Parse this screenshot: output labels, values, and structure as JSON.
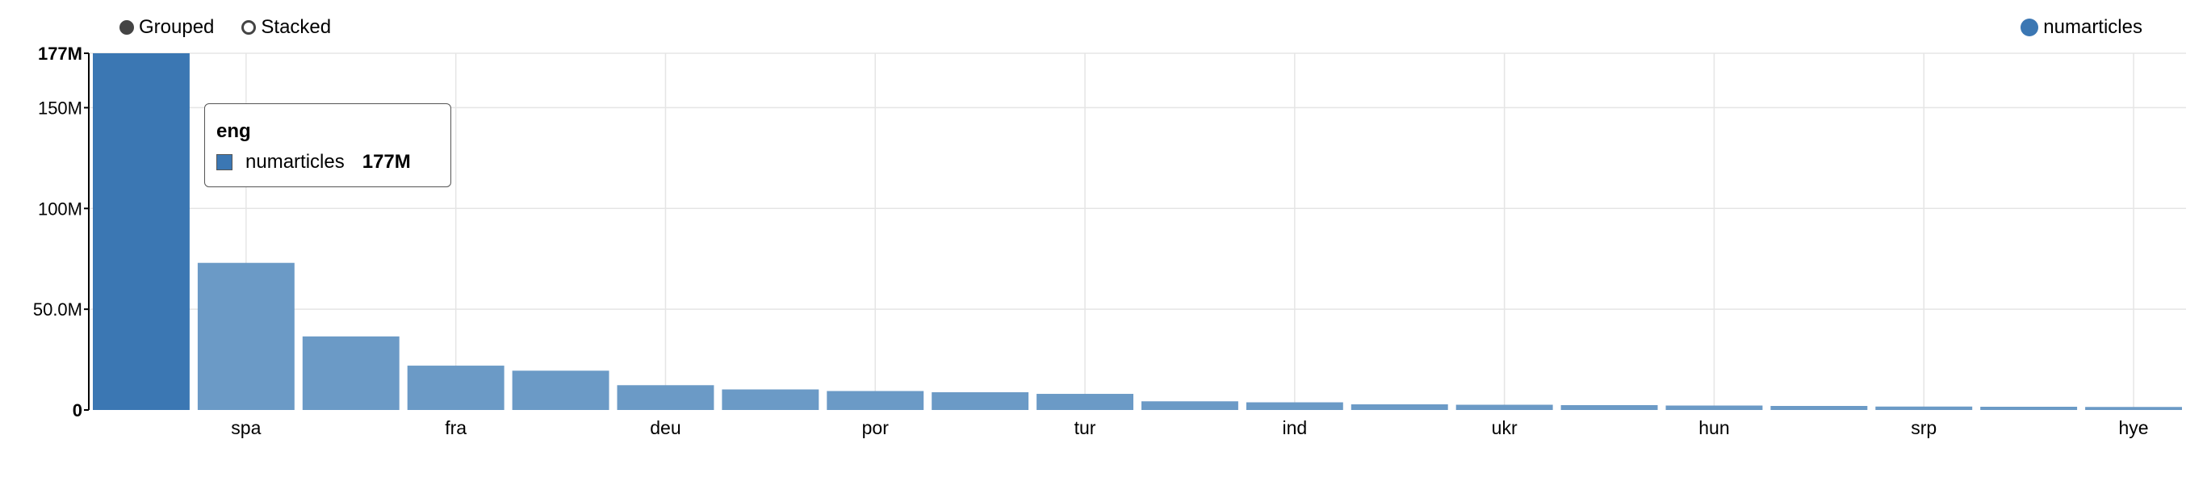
{
  "controls": {
    "grouped_label": "Grouped",
    "stacked_label": "Stacked"
  },
  "legend": {
    "label": "numarticles",
    "color": "#3b77b3"
  },
  "tooltip": {
    "title": "eng",
    "series": "numarticles",
    "value": "177M"
  },
  "chart_data": {
    "type": "bar",
    "categories": [
      "eng",
      "spa",
      "",
      "fra",
      "",
      "deu",
      "",
      "por",
      "",
      "tur",
      "",
      "ind",
      "",
      "ukr",
      "",
      "hun",
      "",
      "srp",
      "",
      "hye"
    ],
    "x_tick_labels": [
      "spa",
      "fra",
      "deu",
      "por",
      "tur",
      "ind",
      "ukr",
      "hun",
      "srp",
      "hye"
    ],
    "series": [
      {
        "name": "numarticles",
        "values": [
          177,
          73,
          36.5,
          22,
          19.5,
          12.3,
          10.2,
          9.4,
          8.8,
          8.0,
          4.3,
          3.8,
          2.8,
          2.6,
          2.4,
          2.2,
          2.0,
          1.7,
          1.6,
          1.5
        ]
      }
    ],
    "highlighted_category": "eng",
    "y_ticks": [
      {
        "value": 0,
        "label": "0",
        "bold": true
      },
      {
        "value": 50,
        "label": "50.0M",
        "bold": false
      },
      {
        "value": 100,
        "label": "100M",
        "bold": false
      },
      {
        "value": 150,
        "label": "150M",
        "bold": false
      },
      {
        "value": 177,
        "label": "177M",
        "bold": true
      }
    ],
    "ylim": [
      0,
      177
    ],
    "grid": true,
    "colors": {
      "bar": "#6b9ac6",
      "bar_highlight": "#3b77b3",
      "grid": "#e5e5e5",
      "axis": "#000000"
    }
  }
}
